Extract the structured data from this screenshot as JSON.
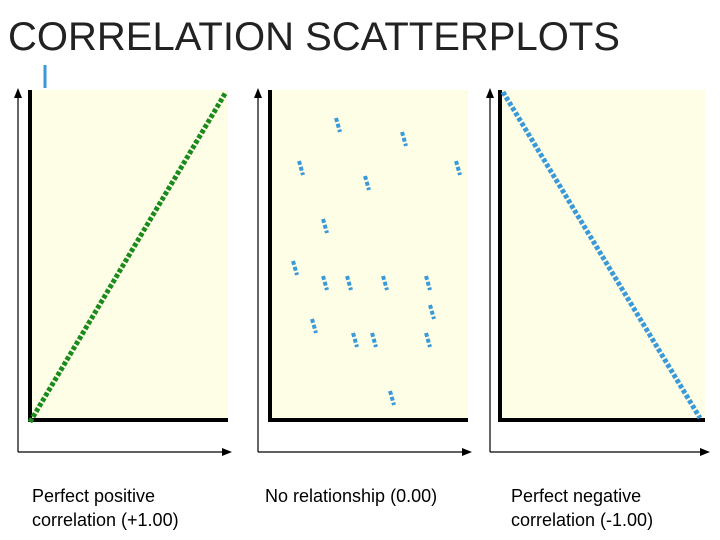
{
  "title": "CORRELATION SCATTERPLOTS",
  "panels": [
    {
      "caption": [
        "Perfect positive",
        "correlation (+1.00)"
      ]
    },
    {
      "caption": [
        "No relationship (0.00)"
      ]
    },
    {
      "caption": [
        "Perfect negative",
        "correlation (-1.00)"
      ]
    }
  ]
}
